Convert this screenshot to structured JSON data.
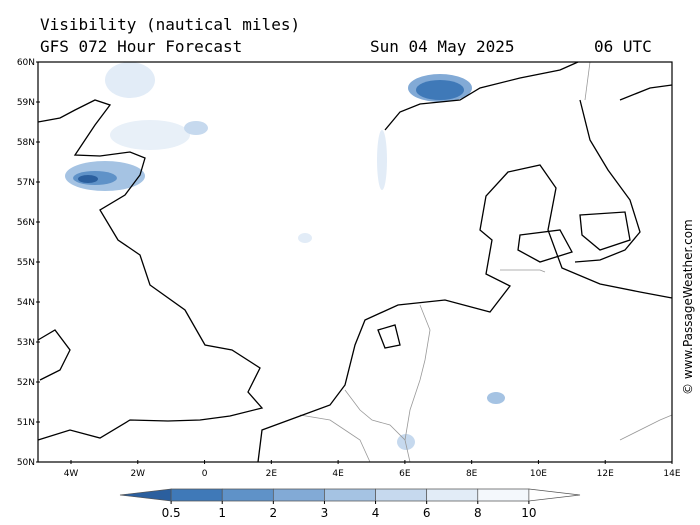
{
  "header": {
    "title": "Visibility (nautical miles)",
    "subtitle": "GFS 072 Hour Forecast",
    "date": "Sun 04 May 2025",
    "time": "06 UTC"
  },
  "map": {
    "lat_labels": [
      "60N",
      "59N",
      "58N",
      "57N",
      "56N",
      "55N",
      "54N",
      "53N",
      "52N",
      "51N",
      "50N"
    ],
    "lon_labels": [
      "4W",
      "2W",
      "0",
      "2E",
      "4E",
      "6E",
      "8E",
      "10E",
      "12E",
      "14E"
    ]
  },
  "colorbar": {
    "ticks": [
      0.5,
      1,
      2,
      3,
      4,
      6,
      8,
      10
    ],
    "colors": [
      "#2b5f9e",
      "#3f79b8",
      "#5f92c8",
      "#82aad6",
      "#a5c3e3",
      "#c6d9ee",
      "#e2ecf7",
      "#f4f8fc",
      "#ffffff"
    ]
  },
  "watermark": "© www.PassageWeather.com"
}
